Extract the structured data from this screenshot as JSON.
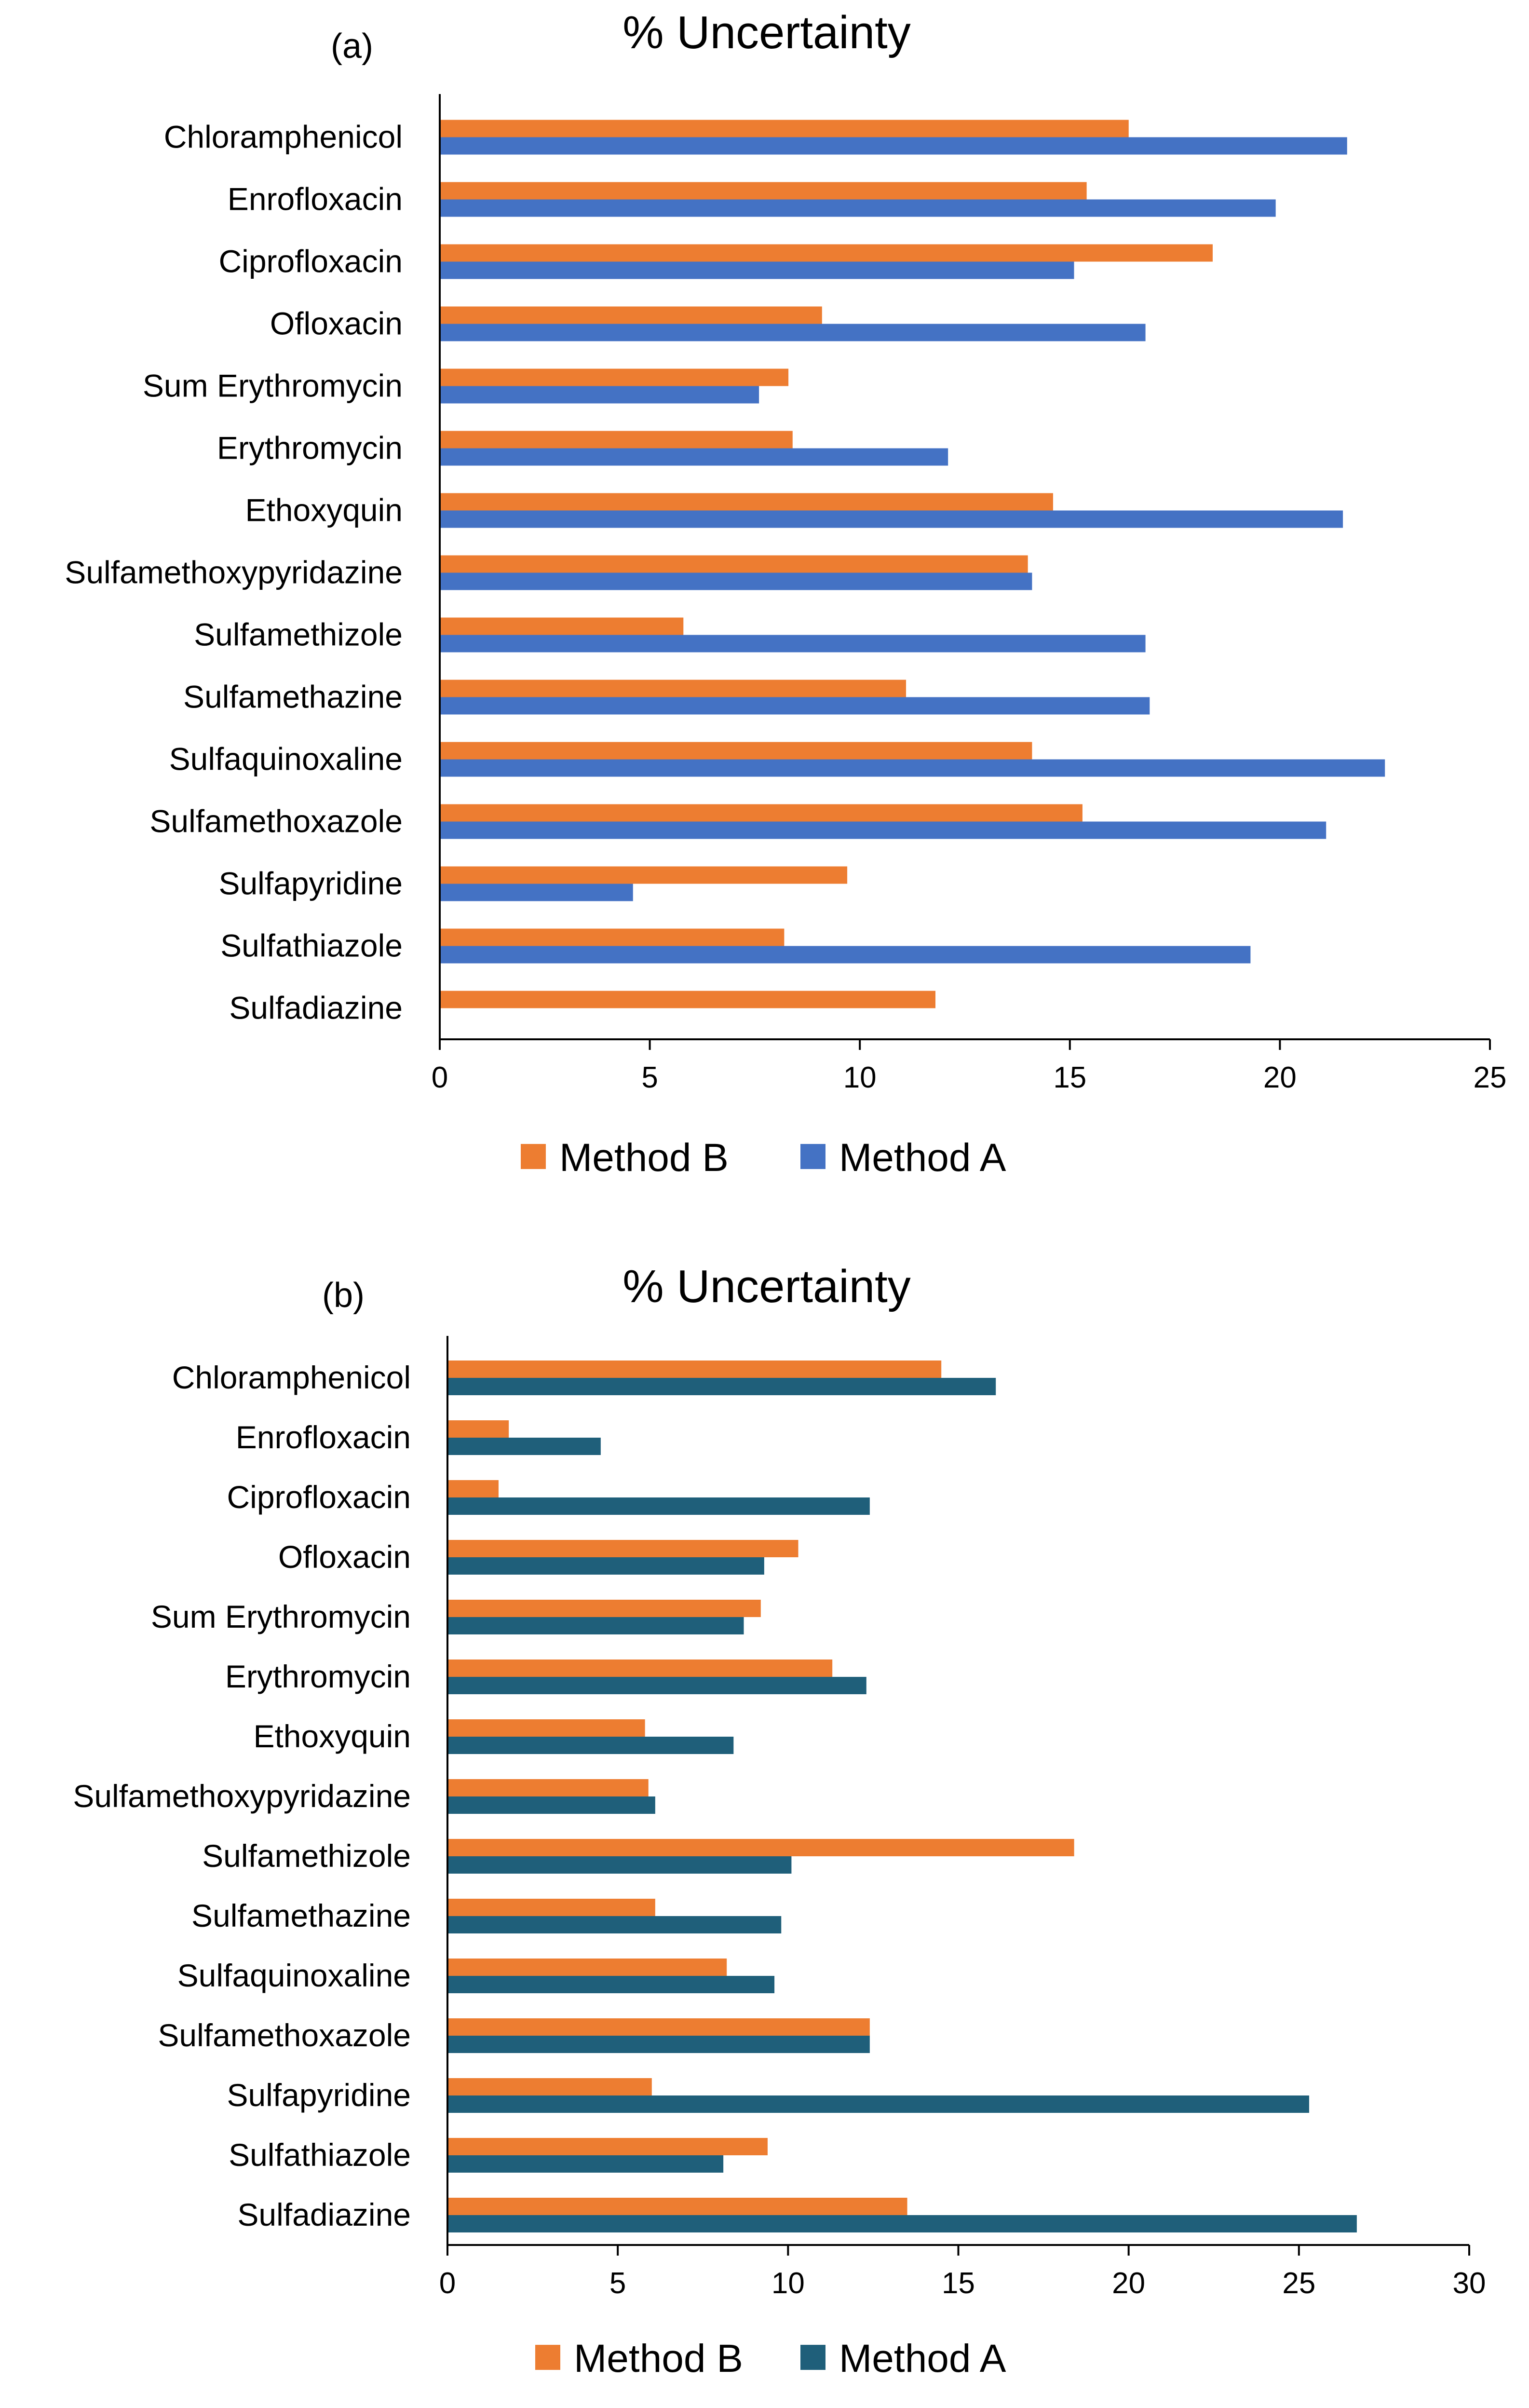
{
  "chart_data": [
    {
      "type": "bar",
      "orientation": "horizontal",
      "panel_label": "(a)",
      "title": "% Uncertainty",
      "categories": [
        "Chloramphenicol",
        "Enrofloxacin",
        "Ciprofloxacin",
        "Ofloxacin",
        "Sum Erythromycin",
        "Erythromycin",
        "Ethoxyquin",
        "Sulfamethoxypyridazine",
        "Sulfamethizole",
        "Sulfamethazine",
        "Sulfaquinoxaline",
        "Sulfamethoxazole",
        "Sulfapyridine",
        "Sulfathiazole",
        "Sulfadiazine"
      ],
      "series": [
        {
          "name": "Method B",
          "color": "#ED7D31",
          "values": [
            16.4,
            15.4,
            18.4,
            9.1,
            8.3,
            8.4,
            14.6,
            14.0,
            5.8,
            11.1,
            14.1,
            15.3,
            9.7,
            8.2,
            11.8
          ]
        },
        {
          "name": "Method A",
          "color": "#4472C4",
          "values": [
            21.6,
            19.9,
            15.1,
            16.8,
            7.6,
            12.1,
            21.5,
            14.1,
            16.8,
            16.9,
            22.5,
            21.1,
            4.6,
            19.3,
            0
          ]
        }
      ],
      "xlim": [
        0,
        25
      ],
      "xticks": [
        "0",
        "5",
        "10",
        "15",
        "20",
        "25"
      ],
      "legend": [
        "Method B",
        "Method A"
      ],
      "legend_position": "bottom"
    },
    {
      "type": "bar",
      "orientation": "horizontal",
      "panel_label": "(b)",
      "title": "% Uncertainty",
      "categories": [
        "Chloramphenicol",
        "Enrofloxacin",
        "Ciprofloxacin",
        "Ofloxacin",
        "Sum Erythromycin",
        "Erythromycin",
        "Ethoxyquin",
        "Sulfamethoxypyridazine",
        "Sulfamethizole",
        "Sulfamethazine",
        "Sulfaquinoxaline",
        "Sulfamethoxazole",
        "Sulfapyridine",
        "Sulfathiazole",
        "Sulfadiazine"
      ],
      "series": [
        {
          "name": "Method B",
          "color": "#ED7D31",
          "values": [
            14.5,
            1.8,
            1.5,
            10.3,
            9.2,
            11.3,
            5.8,
            5.9,
            18.4,
            6.1,
            8.2,
            12.4,
            6.0,
            9.4,
            13.5
          ]
        },
        {
          "name": "Method A",
          "color": "#1F5F7A",
          "values": [
            16.1,
            4.5,
            12.4,
            9.3,
            8.7,
            12.3,
            8.4,
            6.1,
            10.1,
            9.8,
            9.6,
            12.4,
            25.3,
            8.1,
            26.7
          ]
        }
      ],
      "xlim": [
        0,
        30
      ],
      "xticks": [
        "0",
        "5",
        "10",
        "15",
        "20",
        "25",
        "30"
      ],
      "legend": [
        "Method B",
        "Method A"
      ],
      "legend_position": "bottom"
    }
  ]
}
